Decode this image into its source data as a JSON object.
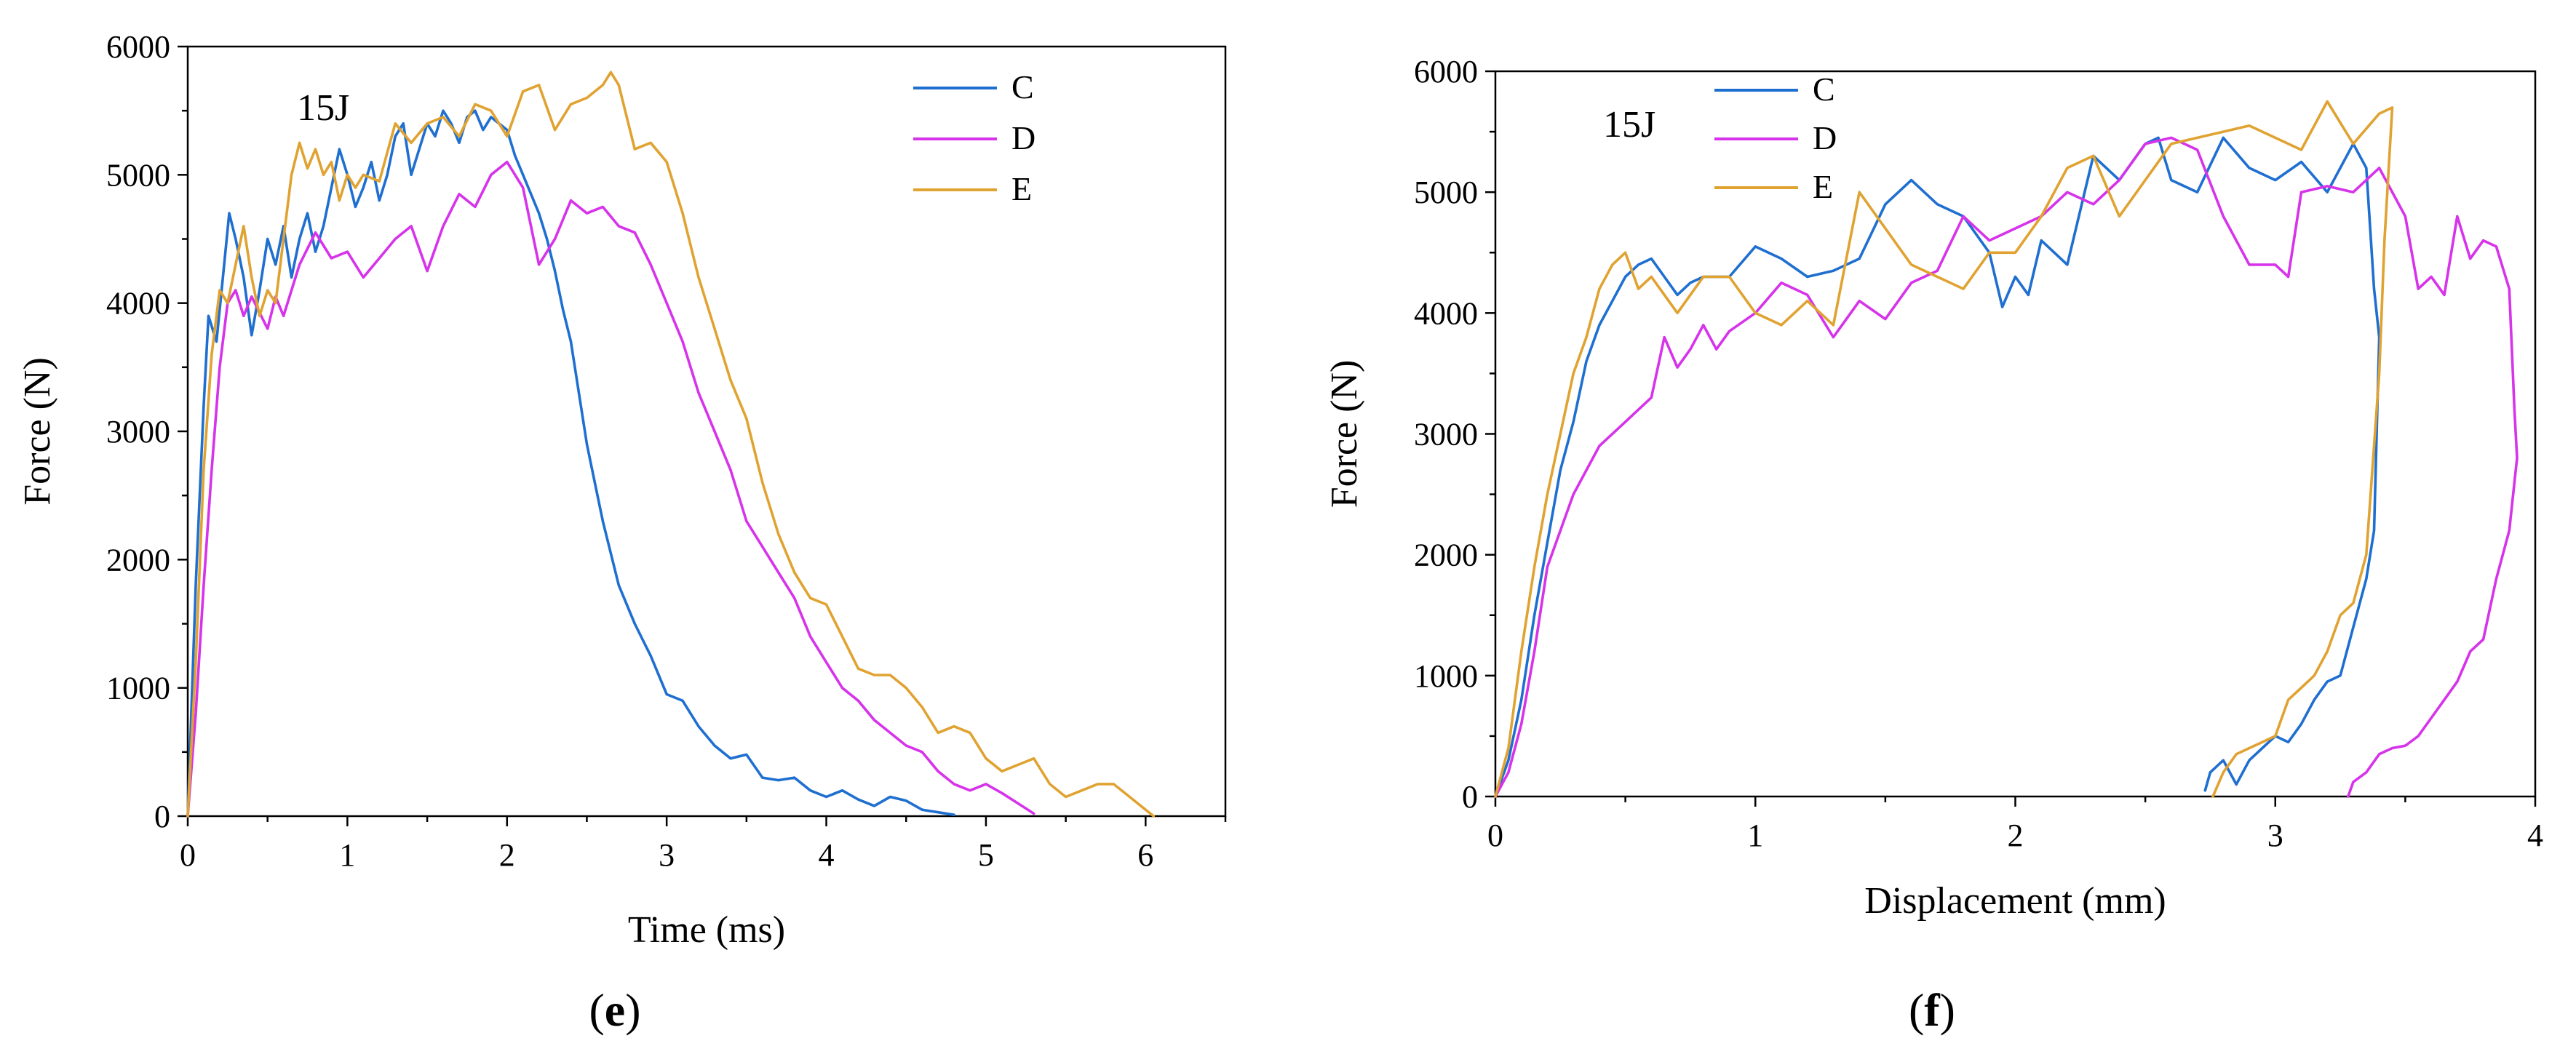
{
  "colors": {
    "C": "#1f6fd0",
    "D": "#d633ea",
    "E": "#e0a332"
  },
  "chart_data": [
    {
      "id": "e",
      "type": "line",
      "panel_label": {
        "open": "(",
        "letter": "e",
        "close": ")"
      },
      "annotation": "15J",
      "xlabel": "Time (ms)",
      "ylabel": "Force (N)",
      "xlim": [
        0,
        6.5
      ],
      "ylim": [
        0,
        6000
      ],
      "xticks": [
        0,
        1,
        2,
        3,
        4,
        5,
        6
      ],
      "yticks": [
        0,
        1000,
        2000,
        3000,
        4000,
        5000,
        6000
      ],
      "series": [
        {
          "name": "C",
          "color": "#1f6fd0",
          "x": [
            0,
            0.05,
            0.1,
            0.13,
            0.18,
            0.22,
            0.26,
            0.3,
            0.35,
            0.4,
            0.45,
            0.5,
            0.55,
            0.6,
            0.65,
            0.7,
            0.75,
            0.8,
            0.85,
            0.9,
            0.95,
            1.0,
            1.05,
            1.1,
            1.15,
            1.2,
            1.25,
            1.3,
            1.35,
            1.4,
            1.45,
            1.5,
            1.55,
            1.6,
            1.65,
            1.7,
            1.75,
            1.8,
            1.85,
            1.9,
            1.95,
            2.0,
            2.05,
            2.1,
            2.15,
            2.2,
            2.25,
            2.3,
            2.35,
            2.4,
            2.45,
            2.5,
            2.55,
            2.6,
            2.7,
            2.8,
            2.9,
            3.0,
            3.1,
            3.2,
            3.3,
            3.4,
            3.5,
            3.6,
            3.7,
            3.8,
            3.9,
            4.0,
            4.1,
            4.2,
            4.3,
            4.4,
            4.5,
            4.6,
            4.7,
            4.8
          ],
          "y": [
            0,
            1800,
            3200,
            3900,
            3700,
            4200,
            4700,
            4500,
            4200,
            3750,
            4100,
            4500,
            4300,
            4600,
            4200,
            4500,
            4700,
            4400,
            4600,
            4900,
            5200,
            5000,
            4750,
            4900,
            5100,
            4800,
            5000,
            5300,
            5400,
            5000,
            5200,
            5400,
            5300,
            5500,
            5400,
            5250,
            5450,
            5500,
            5350,
            5450,
            5400,
            5350,
            5150,
            5000,
            4850,
            4700,
            4500,
            4250,
            3950,
            3700,
            3300,
            2900,
            2600,
            2300,
            1800,
            1500,
            1250,
            950,
            900,
            700,
            550,
            450,
            480,
            300,
            280,
            300,
            200,
            150,
            200,
            130,
            80,
            150,
            120,
            50,
            30,
            10
          ]
        },
        {
          "name": "D",
          "color": "#d633ea",
          "x": [
            0,
            0.05,
            0.1,
            0.15,
            0.2,
            0.25,
            0.3,
            0.35,
            0.4,
            0.5,
            0.55,
            0.6,
            0.7,
            0.8,
            0.9,
            1.0,
            1.1,
            1.2,
            1.3,
            1.4,
            1.5,
            1.6,
            1.7,
            1.8,
            1.9,
            2.0,
            2.1,
            2.2,
            2.3,
            2.4,
            2.5,
            2.6,
            2.7,
            2.8,
            2.9,
            3.0,
            3.1,
            3.2,
            3.3,
            3.4,
            3.5,
            3.6,
            3.7,
            3.8,
            3.9,
            4.0,
            4.1,
            4.2,
            4.3,
            4.4,
            4.5,
            4.6,
            4.7,
            4.8,
            4.9,
            5.0,
            5.1,
            5.2,
            5.3
          ],
          "y": [
            0,
            800,
            1800,
            2700,
            3500,
            4000,
            4100,
            3900,
            4050,
            3800,
            4050,
            3900,
            4300,
            4550,
            4350,
            4400,
            4200,
            4350,
            4500,
            4600,
            4250,
            4600,
            4850,
            4750,
            5000,
            5100,
            4900,
            4300,
            4500,
            4800,
            4700,
            4750,
            4600,
            4550,
            4300,
            4000,
            3700,
            3300,
            3000,
            2700,
            2300,
            2100,
            1900,
            1700,
            1400,
            1200,
            1000,
            900,
            750,
            650,
            550,
            500,
            350,
            250,
            200,
            250,
            180,
            100,
            20
          ]
        },
        {
          "name": "E",
          "color": "#e0a332",
          "x": [
            0,
            0.05,
            0.1,
            0.15,
            0.2,
            0.25,
            0.3,
            0.35,
            0.4,
            0.45,
            0.5,
            0.55,
            0.6,
            0.65,
            0.7,
            0.75,
            0.8,
            0.85,
            0.9,
            0.95,
            1.0,
            1.05,
            1.1,
            1.2,
            1.3,
            1.4,
            1.5,
            1.6,
            1.7,
            1.8,
            1.9,
            2.0,
            2.1,
            2.2,
            2.3,
            2.4,
            2.5,
            2.6,
            2.65,
            2.7,
            2.8,
            2.9,
            3.0,
            3.1,
            3.2,
            3.3,
            3.4,
            3.5,
            3.6,
            3.7,
            3.8,
            3.9,
            4.0,
            4.1,
            4.2,
            4.3,
            4.4,
            4.5,
            4.6,
            4.7,
            4.8,
            4.9,
            5.0,
            5.1,
            5.2,
            5.3,
            5.4,
            5.5,
            5.6,
            5.7,
            5.8,
            5.9,
            6.0,
            6.05
          ],
          "y": [
            0,
            1200,
            2700,
            3600,
            4100,
            4000,
            4300,
            4600,
            4200,
            3900,
            4100,
            4000,
            4500,
            5000,
            5250,
            5050,
            5200,
            5000,
            5100,
            4800,
            5000,
            4900,
            5000,
            4950,
            5400,
            5250,
            5400,
            5450,
            5300,
            5550,
            5500,
            5300,
            5650,
            5700,
            5350,
            5550,
            5600,
            5700,
            5800,
            5700,
            5200,
            5250,
            5100,
            4700,
            4200,
            3800,
            3400,
            3100,
            2600,
            2200,
            1900,
            1700,
            1650,
            1400,
            1150,
            1100,
            1100,
            1000,
            850,
            650,
            700,
            650,
            450,
            350,
            400,
            450,
            250,
            150,
            200,
            250,
            250,
            150,
            50,
            0
          ]
        }
      ],
      "legend": [
        "C",
        "D",
        "E"
      ]
    },
    {
      "id": "f",
      "type": "line",
      "panel_label": {
        "open": "(",
        "letter": "f",
        "close": ")"
      },
      "annotation": "15J",
      "xlabel": "Displacement (mm)",
      "ylabel": "Force (N)",
      "xlim": [
        0,
        4
      ],
      "ylim": [
        0,
        6000
      ],
      "xticks": [
        0,
        1,
        2,
        3,
        4
      ],
      "yticks": [
        0,
        1000,
        2000,
        3000,
        4000,
        5000,
        6000
      ],
      "series": [
        {
          "name": "C",
          "color": "#1f6fd0",
          "x": [
            0,
            0.05,
            0.1,
            0.15,
            0.2,
            0.25,
            0.3,
            0.35,
            0.4,
            0.45,
            0.5,
            0.55,
            0.6,
            0.65,
            0.7,
            0.75,
            0.8,
            0.9,
            1.0,
            1.1,
            1.2,
            1.3,
            1.4,
            1.5,
            1.6,
            1.7,
            1.8,
            1.9,
            1.95,
            2.0,
            2.05,
            2.1,
            2.2,
            2.3,
            2.4,
            2.5,
            2.55,
            2.6,
            2.7,
            2.8,
            2.9,
            3.0,
            3.1,
            3.2,
            3.3,
            3.35,
            3.38,
            3.4,
            3.38,
            3.35,
            3.3,
            3.25,
            3.2,
            3.15,
            3.1,
            3.05,
            3.0,
            2.95,
            2.9,
            2.85,
            2.8,
            2.75,
            2.73
          ],
          "y": [
            0,
            300,
            800,
            1500,
            2100,
            2700,
            3100,
            3600,
            3900,
            4100,
            4300,
            4400,
            4450,
            4300,
            4150,
            4250,
            4300,
            4300,
            4550,
            4450,
            4300,
            4350,
            4450,
            4900,
            5100,
            4900,
            4800,
            4500,
            4050,
            4300,
            4150,
            4600,
            4400,
            5300,
            5100,
            5400,
            5450,
            5100,
            5000,
            5450,
            5200,
            5100,
            5250,
            5000,
            5400,
            5200,
            4200,
            3800,
            2200,
            1800,
            1400,
            1000,
            950,
            800,
            600,
            450,
            500,
            400,
            300,
            100,
            300,
            200,
            50
          ]
        },
        {
          "name": "D",
          "color": "#d633ea",
          "x": [
            0,
            0.05,
            0.1,
            0.15,
            0.2,
            0.3,
            0.4,
            0.5,
            0.6,
            0.65,
            0.7,
            0.75,
            0.8,
            0.85,
            0.9,
            1.0,
            1.1,
            1.2,
            1.3,
            1.4,
            1.5,
            1.6,
            1.7,
            1.8,
            1.9,
            2.0,
            2.1,
            2.2,
            2.3,
            2.4,
            2.5,
            2.6,
            2.7,
            2.8,
            2.9,
            3.0,
            3.05,
            3.1,
            3.2,
            3.3,
            3.4,
            3.5,
            3.55,
            3.6,
            3.65,
            3.7,
            3.75,
            3.8,
            3.85,
            3.9,
            3.92,
            3.93,
            3.92,
            3.9,
            3.85,
            3.8,
            3.75,
            3.7,
            3.65,
            3.6,
            3.55,
            3.5,
            3.45,
            3.4,
            3.35,
            3.3,
            3.28
          ],
          "y": [
            0,
            200,
            600,
            1200,
            1900,
            2500,
            2900,
            3100,
            3300,
            3800,
            3550,
            3700,
            3900,
            3700,
            3850,
            4000,
            4250,
            4150,
            3800,
            4100,
            3950,
            4250,
            4350,
            4800,
            4600,
            4700,
            4800,
            5000,
            4900,
            5100,
            5400,
            5450,
            5350,
            4800,
            4400,
            4400,
            4300,
            5000,
            5050,
            5000,
            5200,
            4800,
            4200,
            4300,
            4150,
            4800,
            4450,
            4600,
            4550,
            4200,
            3200,
            2800,
            2600,
            2200,
            1800,
            1300,
            1200,
            950,
            800,
            650,
            500,
            420,
            400,
            350,
            200,
            120,
            0
          ]
        },
        {
          "name": "E",
          "color": "#e0a332",
          "x": [
            0,
            0.05,
            0.1,
            0.15,
            0.2,
            0.25,
            0.3,
            0.35,
            0.4,
            0.45,
            0.5,
            0.55,
            0.6,
            0.7,
            0.8,
            0.9,
            1.0,
            1.1,
            1.2,
            1.3,
            1.4,
            1.5,
            1.6,
            1.7,
            1.8,
            1.9,
            2.0,
            2.1,
            2.2,
            2.3,
            2.4,
            2.5,
            2.6,
            2.7,
            2.8,
            2.9,
            3.0,
            3.1,
            3.2,
            3.3,
            3.4,
            3.45,
            3.42,
            3.4,
            3.35,
            3.3,
            3.25,
            3.2,
            3.15,
            3.1,
            3.05,
            3.0,
            2.95,
            2.9,
            2.85,
            2.8,
            2.76
          ],
          "y": [
            0,
            400,
            1200,
            1900,
            2500,
            3000,
            3500,
            3800,
            4200,
            4400,
            4500,
            4200,
            4300,
            4000,
            4300,
            4300,
            4000,
            3900,
            4100,
            3900,
            5000,
            4700,
            4400,
            4300,
            4200,
            4500,
            4500,
            4800,
            5200,
            5300,
            4800,
            5100,
            5400,
            5450,
            5500,
            5550,
            5450,
            5350,
            5750,
            5400,
            5650,
            5700,
            4600,
            3500,
            2000,
            1600,
            1500,
            1200,
            1000,
            900,
            800,
            500,
            450,
            400,
            350,
            200,
            0
          ]
        }
      ],
      "legend": [
        "C",
        "D",
        "E"
      ]
    }
  ]
}
